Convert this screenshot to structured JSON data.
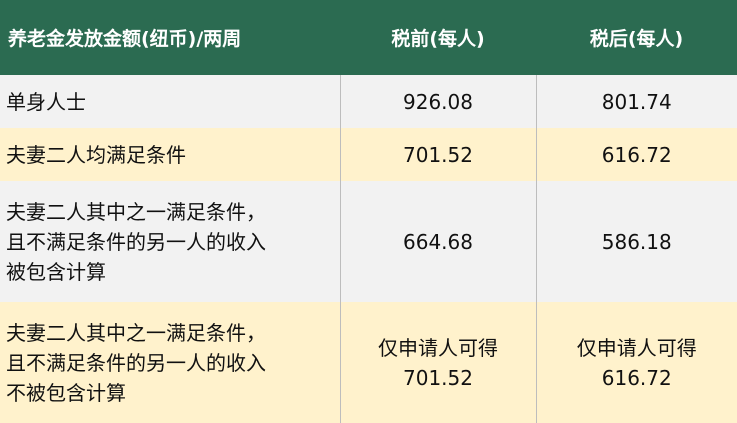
{
  "header": [
    "养老金发放金额(纽币)/两周",
    "税前(每人)",
    "税后(每人)"
  ],
  "rows": [
    {
      "label": "单身人士",
      "pre": "926.08",
      "post": "801.74"
    },
    {
      "label": "夫妻二人均满足条件",
      "pre": "701.52",
      "post": "616.72"
    },
    {
      "label_lines": [
        "夫妻二人其中之一满足条件，",
        "且不满足条件的另一人的收入",
        "被包含计算"
      ],
      "pre": "664.68",
      "post": "586.18"
    },
    {
      "label_lines": [
        "夫妻二人其中之一满足条件，",
        "且不满足条件的另一人的收入",
        "不被包含计算"
      ],
      "pre_note": "仅申请人可得",
      "pre": "701.52",
      "post_note": "仅申请人可得",
      "post": "616.72"
    }
  ],
  "colors": {
    "header": "#2b6b51",
    "row_gray": "#f2f2f2",
    "row_yellow": "#fff2cc"
  }
}
